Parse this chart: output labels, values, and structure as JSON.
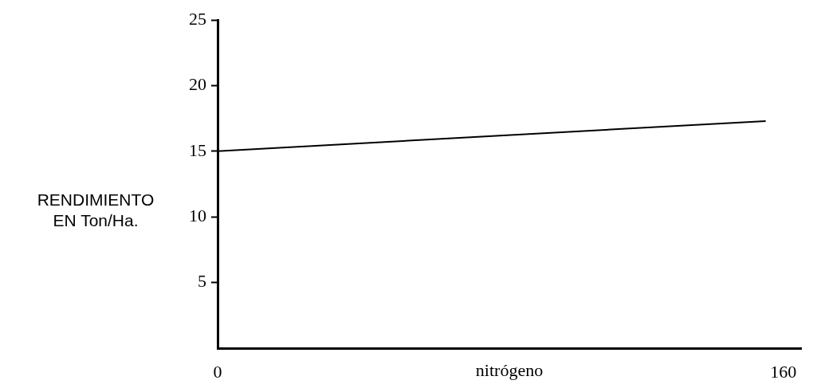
{
  "chart_data": {
    "type": "line",
    "xlabel": "nitrógeno",
    "ylabel": "RENDIMIENTO\nEN Ton/Ha.",
    "x": [
      0,
      155
    ],
    "series": [
      {
        "color": "#000000",
        "values": [
          15,
          17.3
        ]
      }
    ],
    "xlim": [
      0,
      165
    ],
    "xticks": [
      0,
      160
    ],
    "ylim": [
      0,
      25
    ],
    "yticks": [
      5,
      10,
      15,
      20,
      25
    ],
    "grid": false,
    "legend": false,
    "marker": "none",
    "line_style": "solid"
  }
}
